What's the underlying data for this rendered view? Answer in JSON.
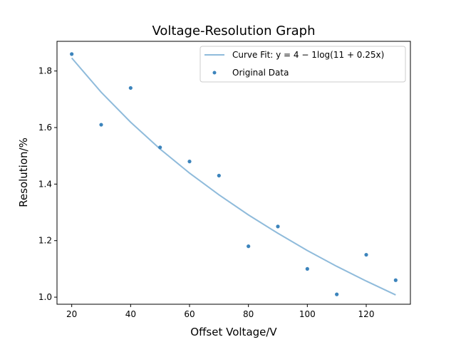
{
  "chart_data": {
    "type": "scatter",
    "title": "Voltage-Resolution Graph",
    "xlabel": "Offset Voltage/V",
    "ylabel": "Resolution/%",
    "xlim": [
      15,
      135
    ],
    "ylim": [
      0.975,
      1.905
    ],
    "xticks": [
      20,
      40,
      60,
      80,
      100,
      120
    ],
    "yticks": [
      1.0,
      1.2,
      1.4,
      1.6,
      1.8
    ],
    "grid": false,
    "legend_position": "top-right",
    "series": [
      {
        "name": "Curve Fit: y = 4 − 1log(11 + 0.25x)",
        "kind": "line",
        "color": "#8fbbdb",
        "x": [
          20,
          30,
          40,
          50,
          60,
          70,
          80,
          90,
          100,
          110,
          120,
          130
        ],
        "y": [
          1.846,
          1.725,
          1.619,
          1.524,
          1.439,
          1.362,
          1.291,
          1.226,
          1.165,
          1.109,
          1.057,
          1.008
        ]
      },
      {
        "name": "Original Data",
        "kind": "scatter",
        "color": "#3c84bc",
        "x": [
          20,
          30,
          40,
          50,
          60,
          70,
          80,
          90,
          100,
          110,
          120,
          130
        ],
        "y": [
          1.86,
          1.61,
          1.74,
          1.53,
          1.48,
          1.43,
          1.18,
          1.25,
          1.1,
          1.01,
          1.15,
          1.06
        ]
      }
    ]
  }
}
